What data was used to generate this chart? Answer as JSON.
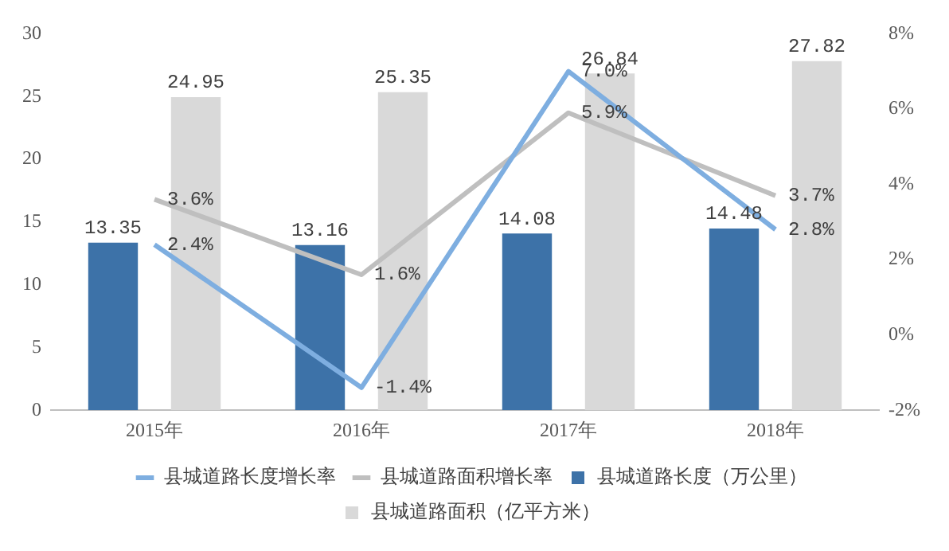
{
  "chart_data": {
    "type": "bar",
    "categories": [
      "2015年",
      "2016年",
      "2017年",
      "2018年"
    ],
    "series": [
      {
        "name": "县城道路长度（万公里）",
        "color": "#3d72a8",
        "values": [
          13.35,
          13.16,
          14.08,
          14.48
        ]
      },
      {
        "name": "县城道路面积（亿平方米）",
        "color": "#d9d9d9",
        "values": [
          24.95,
          25.35,
          26.84,
          27.82
        ]
      },
      {
        "name": "县城道路长度增长率",
        "type": "line",
        "axis": "y2",
        "color": "#7eaee0",
        "values": [
          2.4,
          -1.4,
          7.0,
          2.8
        ],
        "value_labels": [
          "2.4%",
          "-1.4%",
          "7.0%",
          "2.8%"
        ]
      },
      {
        "name": "县城道路面积增长率",
        "type": "line",
        "axis": "y2",
        "color": "#bfbfbf",
        "values": [
          3.6,
          1.6,
          5.9,
          3.7
        ],
        "value_labels": [
          "3.6%",
          "1.6%",
          "5.9%",
          "3.7%"
        ]
      }
    ],
    "ylim": [
      0,
      30
    ],
    "yticks": [
      0,
      5,
      10,
      15,
      20,
      25,
      30
    ],
    "y2lim": [
      -2,
      8
    ],
    "y2ticks": [
      {
        "value": -2,
        "label": "-2%"
      },
      {
        "value": 0,
        "label": "0%"
      },
      {
        "value": 2,
        "label": "2%"
      },
      {
        "value": 4,
        "label": "4%"
      },
      {
        "value": 6,
        "label": "6%"
      },
      {
        "value": 8,
        "label": "8%"
      }
    ],
    "data_labels": true,
    "grid": false,
    "marker": "none",
    "legend": "bottom"
  }
}
